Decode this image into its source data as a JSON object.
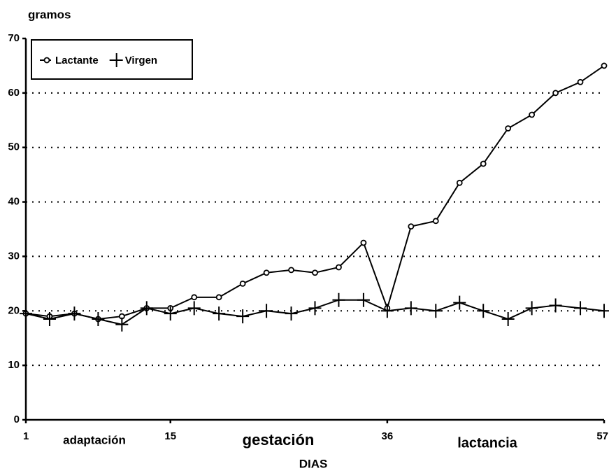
{
  "chart_data": {
    "type": "line",
    "ylabel": "gramos",
    "xlabel": "DIAS",
    "annotations": [
      "adaptación",
      "gestación",
      "lactancia"
    ],
    "x": [
      1,
      3.3,
      5.7,
      8,
      10.3,
      12.7,
      15,
      17.3,
      19.7,
      22,
      24.3,
      26.7,
      29,
      31.3,
      33.7,
      36,
      38.3,
      40.7,
      43,
      45.3,
      47.7,
      50,
      52.3,
      54.7,
      57
    ],
    "series": [
      {
        "name": "Lactante",
        "color": "#000000",
        "marker": "circle",
        "values": [
          19.5,
          19,
          19.5,
          18.5,
          19,
          20.5,
          20.5,
          22.5,
          22.5,
          25,
          27,
          27.5,
          27,
          28,
          32.5,
          20.5,
          35.5,
          36.5,
          43.5,
          47,
          53.5,
          56,
          60,
          62,
          65
        ]
      },
      {
        "name": "Virgen",
        "color": "#000000",
        "marker": "cross",
        "values": [
          19.5,
          18.5,
          19.5,
          18.5,
          17.5,
          20.5,
          19.5,
          20.5,
          19.5,
          19,
          20,
          19.5,
          20.5,
          22,
          22,
          20,
          20.5,
          20,
          21.5,
          20,
          18.5,
          20.5,
          21,
          20.5,
          20
        ]
      }
    ],
    "xlim": [
      1,
      57
    ],
    "xticks": [
      1,
      15,
      36,
      57
    ],
    "ylim": [
      0,
      70
    ],
    "yticks": [
      0,
      10,
      20,
      30,
      40,
      50,
      60,
      70
    ],
    "grid": true,
    "legend": "upper left"
  }
}
